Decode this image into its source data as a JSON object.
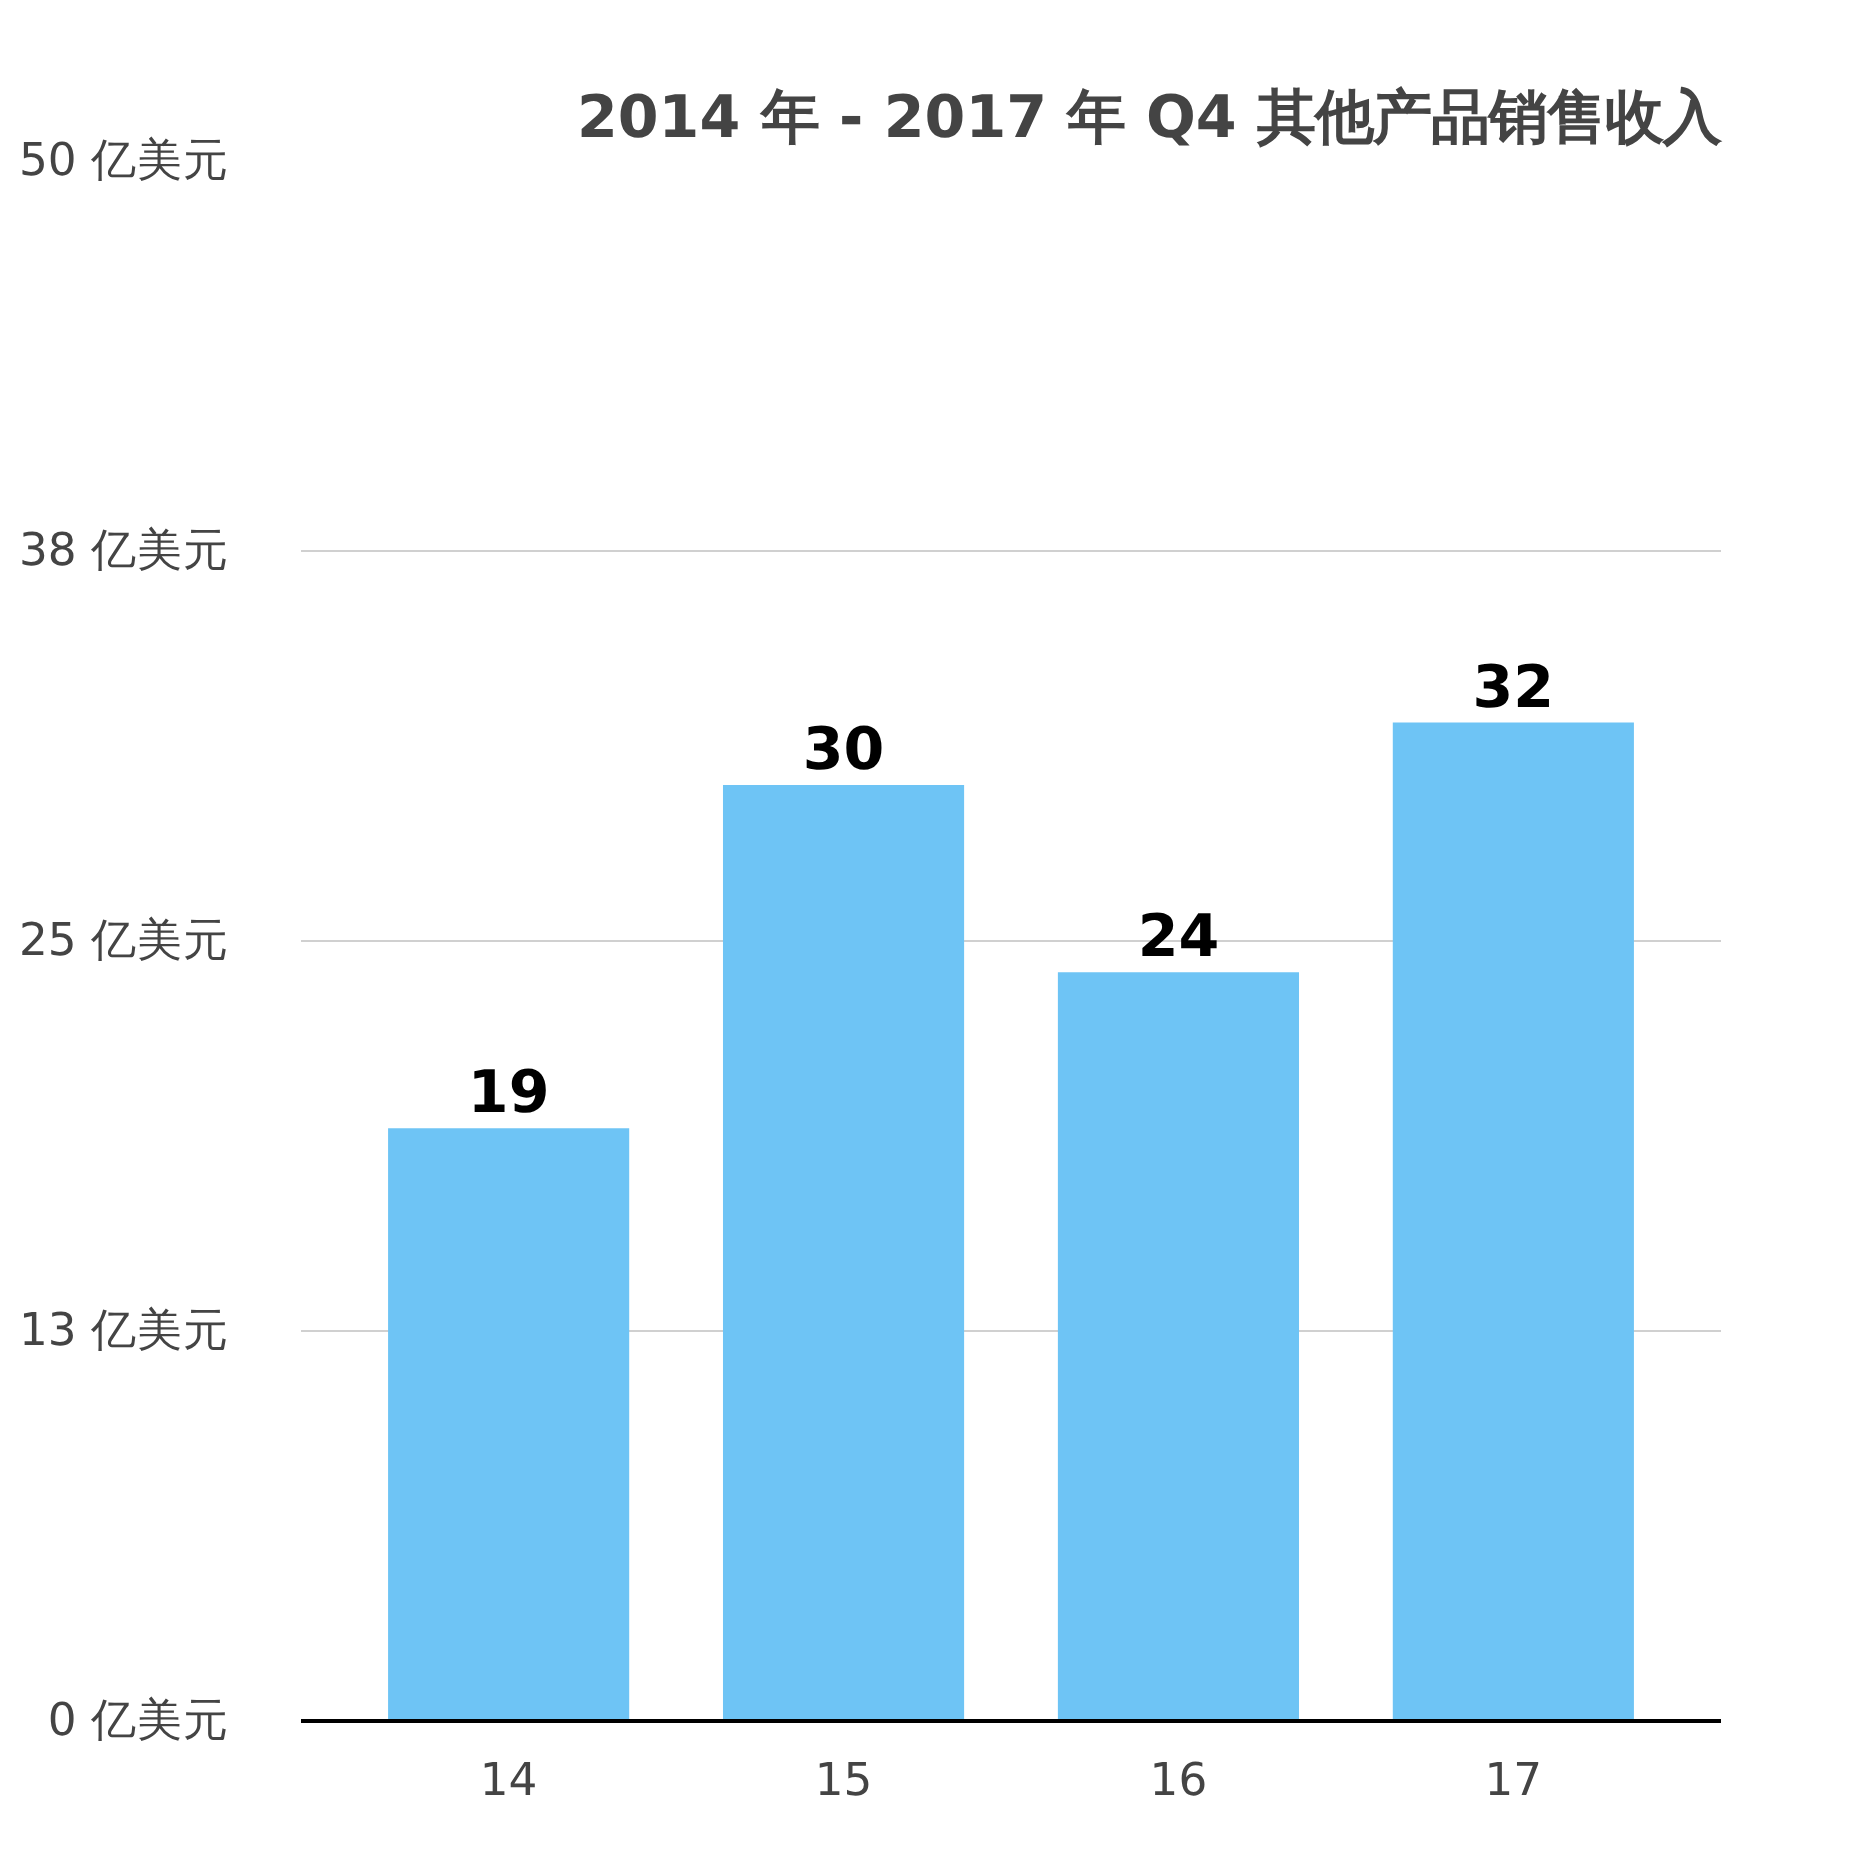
{
  "chart_data": {
    "type": "bar",
    "title": "2014 年 - 2017 年 Q4 其他产品销售收入",
    "categories": [
      "14",
      "15",
      "16",
      "17"
    ],
    "values": [
      19,
      30,
      24,
      32
    ],
    "color": "#6ec4f5",
    "ylim": [
      0,
      50
    ],
    "yticks": [
      {
        "value": 0,
        "label": "0 亿美元"
      },
      {
        "value": 12.5,
        "label": "13 亿美元"
      },
      {
        "value": 25,
        "label": "25 亿美元"
      },
      {
        "value": 37.5,
        "label": "38 亿美元"
      },
      {
        "value": 50,
        "label": "50 亿美元"
      }
    ],
    "grid": "y",
    "data_labels": true
  }
}
